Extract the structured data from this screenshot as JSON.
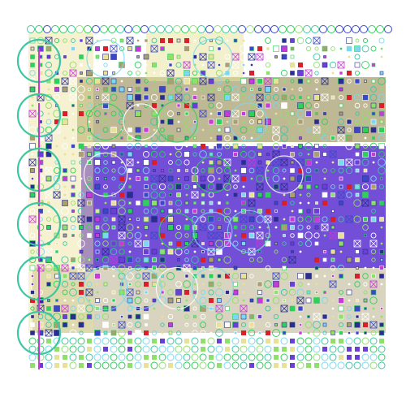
{
  "canvas": {
    "background": "#ffffff",
    "palette": {
      "violet": "#6a3fd6",
      "deep_violet": "#5a2fd0",
      "olive": "#a9a071",
      "khaki": "#e8e19a",
      "green": "#2ecf5a",
      "teal": "#3cc7a2",
      "lime": "#8fe06a",
      "blue": "#3a48c8",
      "navy": "#2a2f8f",
      "red": "#d8202a",
      "magenta": "#c83ad8",
      "cyan": "#7ad8f0",
      "white": "#ffffff"
    },
    "shapes": [
      "circle-outline",
      "square",
      "small-square",
      "cross-box",
      "dot"
    ]
  }
}
